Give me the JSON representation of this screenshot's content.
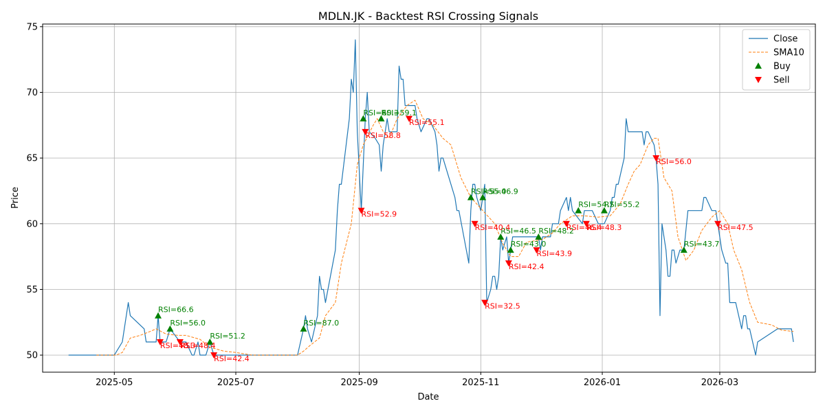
{
  "chart_data": {
    "type": "line",
    "title": "MDLN.JK - Backtest RSI Crossing Signals",
    "xlabel": "Date",
    "ylabel": "Price",
    "xlim": [
      "2025-03-26",
      "2026-04-18"
    ],
    "ylim": [
      48.7,
      75.2
    ],
    "grid": true,
    "legend_position": "top-right",
    "colors": {
      "close": "#1f77b4",
      "sma": "#ff7f0e",
      "buy": "#008000",
      "sell": "#ff0000"
    },
    "x_ticks": [
      {
        "date": "2025-05-01",
        "label": "2025-05"
      },
      {
        "date": "2025-07-01",
        "label": "2025-07"
      },
      {
        "date": "2025-09-01",
        "label": "2025-09"
      },
      {
        "date": "2025-11-01",
        "label": "2025-11"
      },
      {
        "date": "2026-01-01",
        "label": "2026-01"
      },
      {
        "date": "2026-03-01",
        "label": "2026-03"
      }
    ],
    "y_ticks": [
      50,
      55,
      60,
      65,
      70,
      75
    ],
    "series": [
      {
        "name": "Close",
        "style": "solid",
        "points": [
          [
            "2025-04-08",
            50
          ],
          [
            "2025-04-22",
            50
          ],
          [
            "2025-05-01",
            50
          ],
          [
            "2025-05-05",
            51
          ],
          [
            "2025-05-08",
            54
          ],
          [
            "2025-05-09",
            53
          ],
          [
            "2025-05-16",
            52
          ],
          [
            "2025-05-17",
            51
          ],
          [
            "2025-05-21",
            51
          ],
          [
            "2025-05-22",
            51
          ],
          [
            "2025-05-23",
            53
          ],
          [
            "2025-05-24",
            51
          ],
          [
            "2025-05-27",
            51
          ],
          [
            "2025-05-29",
            52
          ],
          [
            "2025-06-03",
            51
          ],
          [
            "2025-06-06",
            51
          ],
          [
            "2025-06-09",
            50
          ],
          [
            "2025-06-10",
            50
          ],
          [
            "2025-06-12",
            51
          ],
          [
            "2025-06-13",
            50
          ],
          [
            "2025-06-16",
            50
          ],
          [
            "2025-06-18",
            51
          ],
          [
            "2025-06-20",
            50
          ],
          [
            "2025-06-24",
            50
          ],
          [
            "2025-07-01",
            50
          ],
          [
            "2025-07-14",
            50
          ],
          [
            "2025-08-01",
            50
          ],
          [
            "2025-08-04",
            52
          ],
          [
            "2025-08-05",
            53
          ],
          [
            "2025-08-06",
            52
          ],
          [
            "2025-08-08",
            51
          ],
          [
            "2025-08-11",
            53
          ],
          [
            "2025-08-12",
            56
          ],
          [
            "2025-08-13",
            55
          ],
          [
            "2025-08-14",
            55
          ],
          [
            "2025-08-15",
            54
          ],
          [
            "2025-08-20",
            58
          ],
          [
            "2025-08-21",
            61
          ],
          [
            "2025-08-22",
            63
          ],
          [
            "2025-08-23",
            63
          ],
          [
            "2025-08-27",
            68
          ],
          [
            "2025-08-28",
            71
          ],
          [
            "2025-08-29",
            70
          ],
          [
            "2025-08-30",
            74
          ],
          [
            "2025-08-31",
            67
          ],
          [
            "2025-09-01",
            64
          ],
          [
            "2025-09-02",
            61
          ],
          [
            "2025-09-04",
            68
          ],
          [
            "2025-09-05",
            70
          ],
          [
            "2025-09-06",
            67
          ],
          [
            "2025-09-09",
            66.5
          ],
          [
            "2025-09-11",
            66
          ],
          [
            "2025-09-12",
            64
          ],
          [
            "2025-09-13",
            66
          ],
          [
            "2025-09-15",
            68
          ],
          [
            "2025-09-16",
            67
          ],
          [
            "2025-09-20",
            67
          ],
          [
            "2025-09-21",
            72
          ],
          [
            "2025-09-22",
            71
          ],
          [
            "2025-09-23",
            71
          ],
          [
            "2025-09-24",
            69
          ],
          [
            "2025-09-29",
            69
          ],
          [
            "2025-09-30",
            68
          ],
          [
            "2025-10-02",
            67
          ],
          [
            "2025-10-05",
            68
          ],
          [
            "2025-10-06",
            68
          ],
          [
            "2025-10-09",
            67
          ],
          [
            "2025-10-10",
            66
          ],
          [
            "2025-10-11",
            64
          ],
          [
            "2025-10-12",
            65
          ],
          [
            "2025-10-13",
            65
          ],
          [
            "2025-10-19",
            62
          ],
          [
            "2025-10-20",
            61
          ],
          [
            "2025-10-21",
            61
          ],
          [
            "2025-10-26",
            57
          ],
          [
            "2025-10-27",
            61
          ],
          [
            "2025-10-28",
            63
          ],
          [
            "2025-10-29",
            63
          ],
          [
            "2025-10-30",
            62
          ],
          [
            "2025-11-01",
            61
          ],
          [
            "2025-11-02",
            62
          ],
          [
            "2025-11-03",
            63
          ],
          [
            "2025-11-04",
            54
          ],
          [
            "2025-11-06",
            55
          ],
          [
            "2025-11-07",
            56
          ],
          [
            "2025-11-08",
            56
          ],
          [
            "2025-11-09",
            55
          ],
          [
            "2025-11-10",
            56
          ],
          [
            "2025-11-11",
            59
          ],
          [
            "2025-11-12",
            58
          ],
          [
            "2025-11-14",
            59
          ],
          [
            "2025-11-15",
            57
          ],
          [
            "2025-11-16",
            58
          ],
          [
            "2025-11-17",
            59
          ],
          [
            "2025-11-20",
            59
          ],
          [
            "2025-11-30",
            59
          ],
          [
            "2025-12-01",
            58
          ],
          [
            "2025-12-02",
            59
          ],
          [
            "2025-12-04",
            59
          ],
          [
            "2025-12-06",
            59
          ],
          [
            "2025-12-07",
            60
          ],
          [
            "2025-12-10",
            60
          ],
          [
            "2025-12-11",
            61
          ],
          [
            "2025-12-14",
            62
          ],
          [
            "2025-12-15",
            61
          ],
          [
            "2025-12-16",
            62
          ],
          [
            "2025-12-17",
            61
          ],
          [
            "2025-12-22",
            60
          ],
          [
            "2025-12-23",
            61
          ],
          [
            "2025-12-27",
            61
          ],
          [
            "2025-12-30",
            60
          ],
          [
            "2026-01-02",
            60
          ],
          [
            "2026-01-05",
            61
          ],
          [
            "2026-01-06",
            62
          ],
          [
            "2026-01-07",
            62
          ],
          [
            "2026-01-08",
            63
          ],
          [
            "2026-01-09",
            63
          ],
          [
            "2026-01-12",
            65
          ],
          [
            "2026-01-13",
            68
          ],
          [
            "2026-01-14",
            67
          ],
          [
            "2026-01-21",
            67
          ],
          [
            "2026-01-22",
            66
          ],
          [
            "2026-01-23",
            67
          ],
          [
            "2026-01-24",
            67
          ],
          [
            "2026-01-27",
            66
          ],
          [
            "2026-01-28",
            65
          ],
          [
            "2026-01-29",
            63
          ],
          [
            "2026-01-30",
            53
          ],
          [
            "2026-01-31",
            60
          ],
          [
            "2026-02-02",
            58
          ],
          [
            "2026-02-03",
            56
          ],
          [
            "2026-02-04",
            56
          ],
          [
            "2026-02-05",
            58
          ],
          [
            "2026-02-06",
            58
          ],
          [
            "2026-02-07",
            57
          ],
          [
            "2026-02-09",
            58
          ],
          [
            "2026-02-10",
            58
          ],
          [
            "2026-02-11",
            58
          ],
          [
            "2026-02-13",
            61
          ],
          [
            "2026-02-20",
            61
          ],
          [
            "2026-02-21",
            62
          ],
          [
            "2026-02-22",
            62
          ],
          [
            "2026-02-25",
            61
          ],
          [
            "2026-02-27",
            61
          ],
          [
            "2026-02-28",
            60
          ],
          [
            "2026-03-01",
            59
          ],
          [
            "2026-03-02",
            58
          ],
          [
            "2026-03-04",
            57
          ],
          [
            "2026-03-05",
            57
          ],
          [
            "2026-03-06",
            54
          ],
          [
            "2026-03-09",
            54
          ],
          [
            "2026-03-12",
            52
          ],
          [
            "2026-03-13",
            53
          ],
          [
            "2026-03-14",
            53
          ],
          [
            "2026-03-15",
            52
          ],
          [
            "2026-03-16",
            52
          ],
          [
            "2026-03-19",
            50
          ],
          [
            "2026-03-20",
            51
          ],
          [
            "2026-03-30",
            52
          ],
          [
            "2026-04-06",
            52
          ],
          [
            "2026-04-07",
            51
          ]
        ]
      },
      {
        "name": "SMA10",
        "style": "dashed",
        "points": [
          [
            "2025-04-22",
            50
          ],
          [
            "2025-05-02",
            50
          ],
          [
            "2025-05-05",
            50.2
          ],
          [
            "2025-05-09",
            51.3
          ],
          [
            "2025-05-14",
            51.5
          ],
          [
            "2025-05-19",
            51.8
          ],
          [
            "2025-05-22",
            52
          ],
          [
            "2025-05-27",
            51.6
          ],
          [
            "2025-06-02",
            51.5
          ],
          [
            "2025-06-06",
            51.5
          ],
          [
            "2025-06-13",
            51.2
          ],
          [
            "2025-06-18",
            50.6
          ],
          [
            "2025-06-25",
            50.3
          ],
          [
            "2025-07-01",
            50.2
          ],
          [
            "2025-07-09",
            50
          ],
          [
            "2025-08-01",
            50
          ],
          [
            "2025-08-04",
            50.3
          ],
          [
            "2025-08-07",
            50.7
          ],
          [
            "2025-08-12",
            51.3
          ],
          [
            "2025-08-15",
            53
          ],
          [
            "2025-08-20",
            54
          ],
          [
            "2025-08-23",
            57
          ],
          [
            "2025-08-28",
            60
          ],
          [
            "2025-08-31",
            64.5
          ],
          [
            "2025-09-03",
            66
          ],
          [
            "2025-09-08",
            67.5
          ],
          [
            "2025-09-10",
            68
          ],
          [
            "2025-09-13",
            67
          ],
          [
            "2025-09-16",
            66.5
          ],
          [
            "2025-09-20",
            68
          ],
          [
            "2025-09-25",
            69
          ],
          [
            "2025-09-29",
            69.4
          ],
          [
            "2025-10-03",
            68
          ],
          [
            "2025-10-08",
            67.5
          ],
          [
            "2025-10-13",
            66.5
          ],
          [
            "2025-10-17",
            66
          ],
          [
            "2025-10-22",
            63.5
          ],
          [
            "2025-10-27",
            62
          ],
          [
            "2025-11-02",
            61
          ],
          [
            "2025-11-05",
            60.5
          ],
          [
            "2025-11-08",
            60
          ],
          [
            "2025-11-12",
            58.5
          ],
          [
            "2025-11-16",
            57.5
          ],
          [
            "2025-11-20",
            57.5
          ],
          [
            "2025-11-24",
            58.6
          ],
          [
            "2025-12-02",
            58.8
          ],
          [
            "2025-12-07",
            59.3
          ],
          [
            "2025-12-11",
            60
          ],
          [
            "2025-12-17",
            60.6
          ],
          [
            "2025-12-23",
            60.6
          ],
          [
            "2025-12-30",
            60.5
          ],
          [
            "2026-01-05",
            60.6
          ],
          [
            "2026-01-10",
            61.5
          ],
          [
            "2026-01-14",
            63
          ],
          [
            "2026-01-17",
            64
          ],
          [
            "2026-01-20",
            64.5
          ],
          [
            "2026-01-24",
            66
          ],
          [
            "2026-01-27",
            66.5
          ],
          [
            "2026-01-29",
            66.5
          ],
          [
            "2026-02-01",
            63.5
          ],
          [
            "2026-02-05",
            62.5
          ],
          [
            "2026-02-08",
            59
          ],
          [
            "2026-02-12",
            57.2
          ],
          [
            "2026-02-16",
            58
          ],
          [
            "2026-02-20",
            59.5
          ],
          [
            "2026-02-25",
            60.5
          ],
          [
            "2026-03-01",
            61
          ],
          [
            "2026-03-05",
            60
          ],
          [
            "2026-03-08",
            58
          ],
          [
            "2026-03-12",
            56.5
          ],
          [
            "2026-03-16",
            54
          ],
          [
            "2026-03-20",
            52.5
          ],
          [
            "2026-03-27",
            52.3
          ],
          [
            "2026-04-01",
            51.9
          ],
          [
            "2026-04-07",
            51.8
          ]
        ]
      }
    ],
    "legend": [
      {
        "label": "Close",
        "kind": "line-solid"
      },
      {
        "label": "SMA10",
        "kind": "line-dashed"
      },
      {
        "label": "Buy",
        "kind": "buy"
      },
      {
        "label": "Sell",
        "kind": "sell"
      }
    ],
    "buy_signals": [
      {
        "date": "2025-05-23",
        "price": 53,
        "label": "RSI=66.6"
      },
      {
        "date": "2025-05-29",
        "price": 52,
        "label": "RSI=56.0"
      },
      {
        "date": "2025-06-18",
        "price": 51,
        "label": "RSI=51.2"
      },
      {
        "date": "2025-08-04",
        "price": 52,
        "label": "RSI=87.0"
      },
      {
        "date": "2025-09-03",
        "price": 68,
        "label": "RSI=60.3"
      },
      {
        "date": "2025-09-12",
        "price": 68,
        "label": "RSI=59.1"
      },
      {
        "date": "2025-10-27",
        "price": 62,
        "label": "RSI=55.0"
      },
      {
        "date": "2025-11-02",
        "price": 62,
        "label": "RSI=46.9"
      },
      {
        "date": "2025-11-11",
        "price": 59,
        "label": "RSI=46.5"
      },
      {
        "date": "2025-11-16",
        "price": 58,
        "label": "RSI=43.0"
      },
      {
        "date": "2025-11-30",
        "price": 59,
        "label": "RSI=48.2"
      },
      {
        "date": "2025-12-20",
        "price": 61,
        "label": "RSI=54.7"
      },
      {
        "date": "2026-01-02",
        "price": 61,
        "label": "RSI=55.2"
      },
      {
        "date": "2026-02-11",
        "price": 58,
        "label": "RSI=43.7"
      }
    ],
    "sell_signals": [
      {
        "date": "2025-05-24",
        "price": 51,
        "label": "RSI=48.3"
      },
      {
        "date": "2025-06-03",
        "price": 51,
        "label": "RSI=48.4"
      },
      {
        "date": "2025-06-20",
        "price": 50,
        "label": "RSI=42.4"
      },
      {
        "date": "2025-09-02",
        "price": 61,
        "label": "RSI=52.9"
      },
      {
        "date": "2025-09-04",
        "price": 67,
        "label": "RSI=58.8"
      },
      {
        "date": "2025-09-26",
        "price": 68,
        "label": "RSI=55.1"
      },
      {
        "date": "2025-10-29",
        "price": 60,
        "label": "RSI=40.4"
      },
      {
        "date": "2025-11-03",
        "price": 54,
        "label": "RSI=32.5"
      },
      {
        "date": "2025-11-15",
        "price": 57,
        "label": "RSI=42.4"
      },
      {
        "date": "2025-11-29",
        "price": 58,
        "label": "RSI=43.9"
      },
      {
        "date": "2025-12-14",
        "price": 60,
        "label": "RSI=46.4"
      },
      {
        "date": "2025-12-24",
        "price": 60,
        "label": "RSI=48.3"
      },
      {
        "date": "2026-01-28",
        "price": 65,
        "label": "RSI=56.0"
      },
      {
        "date": "2026-02-28",
        "price": 60,
        "label": "RSI=47.5"
      }
    ]
  }
}
